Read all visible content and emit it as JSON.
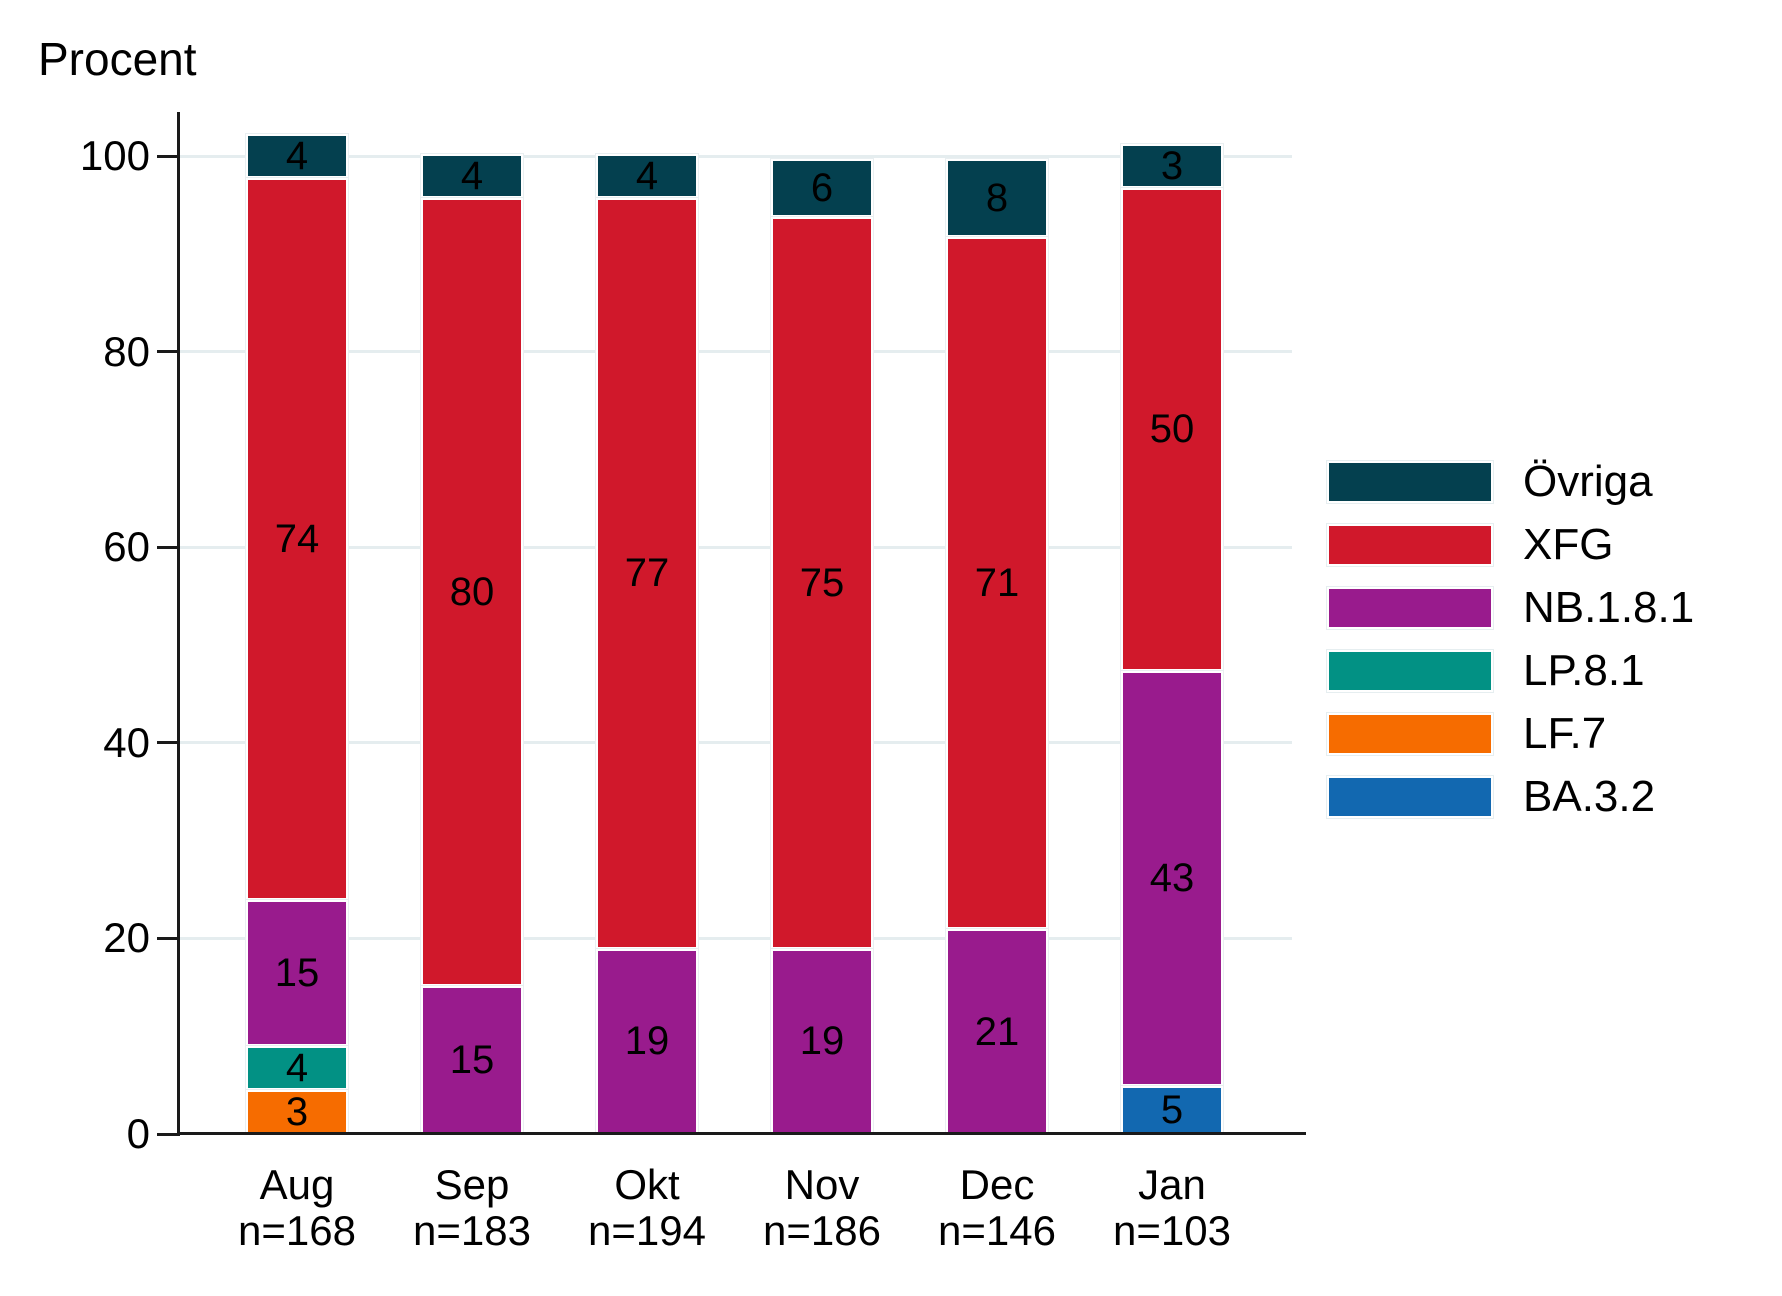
{
  "y_axis_title": "Procent",
  "y_ticks": [
    0,
    20,
    40,
    60,
    80,
    100
  ],
  "legend_order": [
    "Övriga",
    "XFG",
    "NB.1.8.1",
    "LP.8.1",
    "LF.7",
    "BA.3.2"
  ],
  "chart_data": {
    "type": "bar",
    "stacked": true,
    "title": "",
    "xlabel": "",
    "ylabel": "Procent",
    "ylim": [
      0,
      100
    ],
    "grid": "horizontal",
    "legend_position": "right",
    "categories": [
      "Aug",
      "Sep",
      "Okt",
      "Nov",
      "Dec",
      "Jan"
    ],
    "sample_sizes": [
      "n=168",
      "n=183",
      "n=194",
      "n=186",
      "n=146",
      "n=103"
    ],
    "series": [
      {
        "name": "BA.3.2",
        "color": "#1268b0",
        "values": [
          0,
          0,
          0,
          0,
          0,
          5
        ]
      },
      {
        "name": "LF.7",
        "color": "#f66c00",
        "values": [
          3,
          0,
          0,
          0,
          0,
          0
        ]
      },
      {
        "name": "LP.8.1",
        "color": "#029184",
        "values": [
          4,
          0,
          0,
          0,
          0,
          0
        ]
      },
      {
        "name": "NB.1.8.1",
        "color": "#991b8d",
        "values": [
          15,
          15,
          19,
          19,
          21,
          43
        ]
      },
      {
        "name": "XFG",
        "color": "#d0182b",
        "values": [
          74,
          80,
          77,
          75,
          71,
          50
        ]
      },
      {
        "name": "Övriga",
        "color": "#04404f",
        "values": [
          4,
          4,
          4,
          6,
          8,
          3
        ]
      }
    ]
  }
}
